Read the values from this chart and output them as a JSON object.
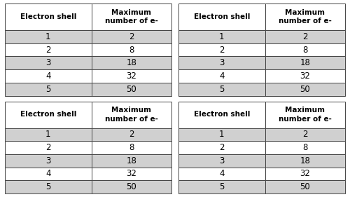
{
  "col_headers": [
    "Electron shell",
    "Maximum\nnumber of e-"
  ],
  "rows": [
    [
      "1",
      "2"
    ],
    [
      "2",
      "8"
    ],
    [
      "3",
      "18"
    ],
    [
      "4",
      "32"
    ],
    [
      "5",
      "50"
    ]
  ],
  "header_bg": "#ffffff",
  "row_bg_odd": "#d0d0d0",
  "row_bg_even": "#ffffff",
  "border_color": "#444444",
  "text_color": "#000000",
  "header_fontsize": 7.5,
  "cell_fontsize": 8.5,
  "background_color": "#ffffff"
}
